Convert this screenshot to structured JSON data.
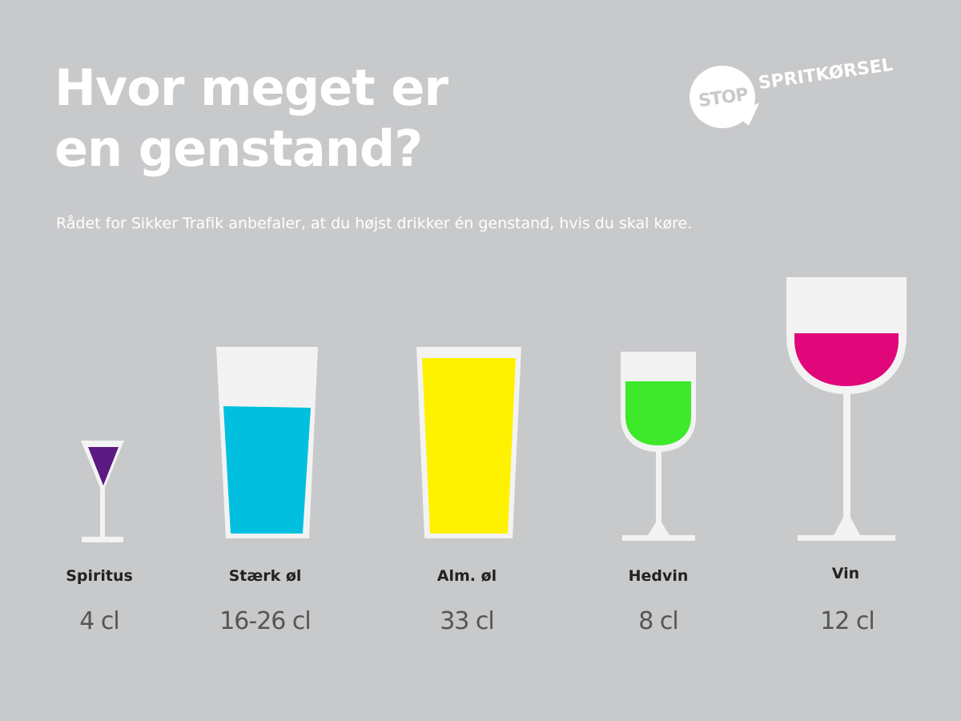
{
  "title_line1": "Hvor meget er",
  "title_line2": "en genstand?",
  "subtitle": "Rådet for Sikker Trafik anbefaler, at du højst drikker én genstand, hvis du skal køre.",
  "logo": {
    "stop": "STOP",
    "word": "SPRITKØRSEL"
  },
  "drinks": [
    {
      "label": "Spiritus",
      "amount": "4 cl",
      "color": "#5b1a82"
    },
    {
      "label": "Stærk øl",
      "amount": "16-26 cl",
      "color": "#00bfdf"
    },
    {
      "label": "Alm. øl",
      "amount": "33 cl",
      "color": "#fff200"
    },
    {
      "label": "Hedvin",
      "amount": "8 cl",
      "color": "#3ee82a"
    },
    {
      "label": "Vin",
      "amount": "12 cl",
      "color": "#e0077a"
    }
  ],
  "colors": {
    "background": "#c8c9cb",
    "glass": "#f3f3f3"
  }
}
